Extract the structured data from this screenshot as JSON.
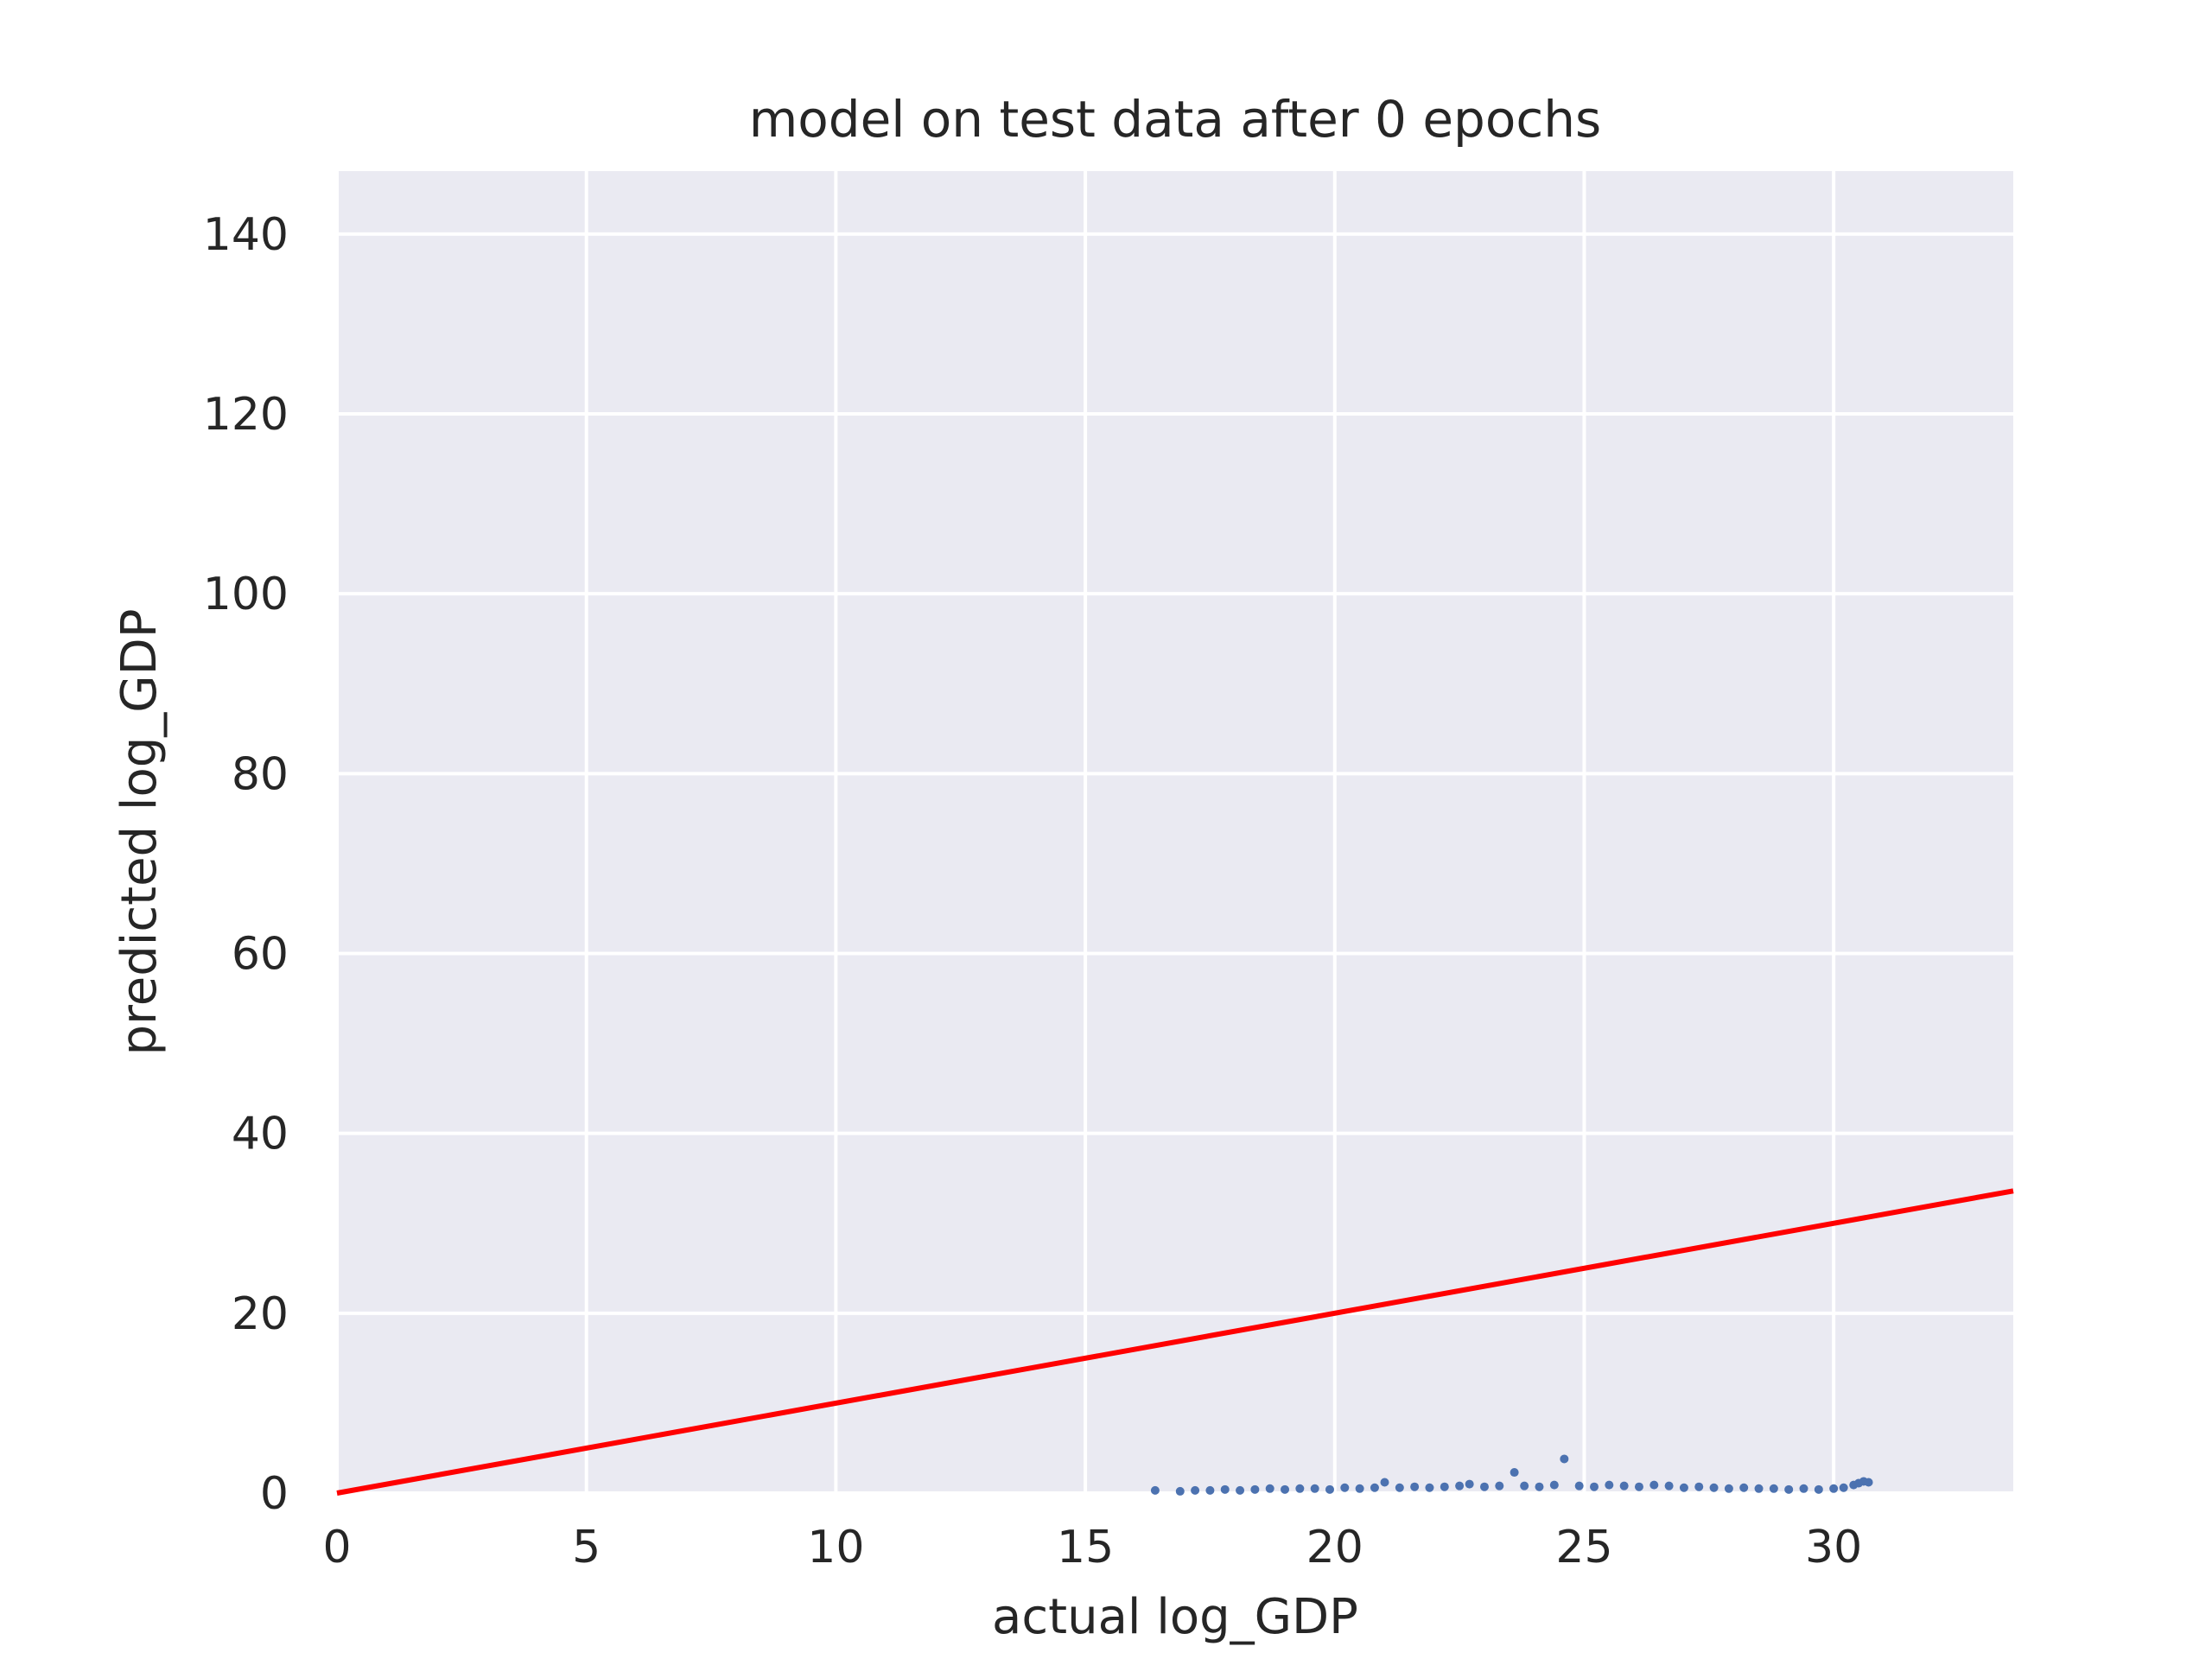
{
  "chart_data": {
    "type": "scatter",
    "title": "model on test data after 0 epochs",
    "xlabel": "actual log_GDP",
    "ylabel": "predicted log_GDP",
    "xlim": [
      0,
      33.6
    ],
    "ylim": [
      0,
      147
    ],
    "xticks": [
      0,
      5,
      10,
      15,
      20,
      25,
      30
    ],
    "yticks": [
      0,
      20,
      40,
      60,
      80,
      100,
      120,
      140
    ],
    "grid": true,
    "background": "#eaeaf2",
    "grid_color": "#ffffff",
    "point_color": "#4c72b0",
    "line_color": "#ff0000",
    "reference_line": {
      "x": [
        0,
        33.6
      ],
      "y": [
        0,
        33.6
      ]
    },
    "series": [
      {
        "x": [
          16.4,
          16.9,
          17.2,
          17.5,
          17.8,
          18.1,
          18.4,
          18.7,
          19.0,
          19.3,
          19.6,
          19.9,
          20.2,
          20.5,
          20.8,
          21.0,
          21.3,
          21.6,
          21.9,
          22.2,
          22.5,
          22.7,
          23.0,
          23.3,
          23.6,
          23.8,
          24.1,
          24.4,
          24.6,
          24.9,
          25.2,
          25.5,
          25.8,
          26.1,
          26.4,
          26.7,
          27.0,
          27.3,
          27.6,
          27.9,
          28.2,
          28.5,
          28.8,
          29.1,
          29.4,
          29.7,
          30.0,
          30.2,
          30.4,
          30.5,
          30.6,
          30.7
        ],
        "y": [
          0.3,
          0.2,
          0.3,
          0.3,
          0.4,
          0.3,
          0.4,
          0.5,
          0.4,
          0.5,
          0.5,
          0.4,
          0.6,
          0.5,
          0.6,
          1.2,
          0.6,
          0.7,
          0.6,
          0.7,
          0.8,
          1.0,
          0.7,
          0.8,
          2.3,
          0.8,
          0.7,
          0.9,
          3.8,
          0.8,
          0.7,
          0.9,
          0.8,
          0.7,
          0.9,
          0.8,
          0.6,
          0.7,
          0.6,
          0.5,
          0.6,
          0.5,
          0.5,
          0.4,
          0.5,
          0.4,
          0.5,
          0.6,
          0.9,
          1.1,
          1.3,
          1.2
        ]
      }
    ]
  }
}
